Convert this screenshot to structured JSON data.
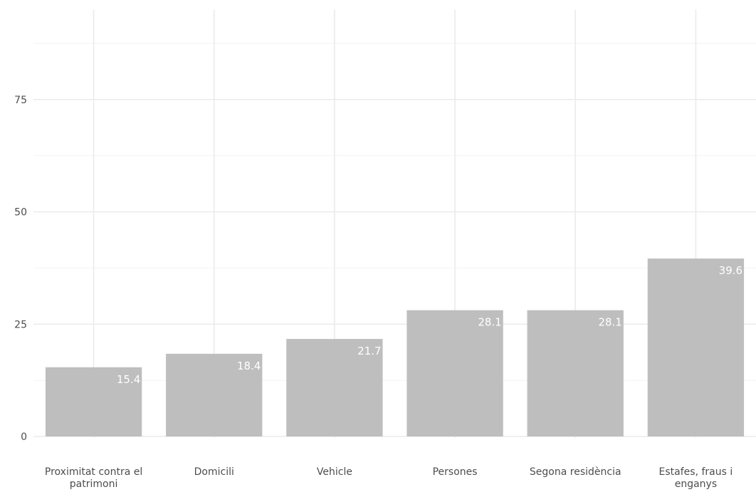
{
  "chart_data": {
    "type": "bar",
    "categories": [
      [
        "Proximitat contra el",
        "patrimoni"
      ],
      [
        "Domicili"
      ],
      [
        "Vehicle"
      ],
      [
        "Persones"
      ],
      [
        "Segona residència"
      ],
      [
        "Estafes, fraus i",
        "enganys"
      ]
    ],
    "values": [
      15.4,
      18.4,
      21.7,
      28.1,
      28.1,
      39.6
    ],
    "data_labels": [
      "15.4",
      "18.4",
      "21.7",
      "28.1",
      "28.1",
      "39.6"
    ],
    "ylim": [
      0,
      95
    ],
    "yticks": [
      0,
      25,
      50,
      75
    ],
    "ytick_labels": [
      "0",
      "25",
      "50",
      "75"
    ],
    "minor_yticks": [
      12.5,
      37.5,
      62.5,
      87.5
    ],
    "grid": true,
    "bar_color": "#bebebe",
    "label_color": "#ffffff",
    "title": "",
    "xlabel": "",
    "ylabel": ""
  }
}
